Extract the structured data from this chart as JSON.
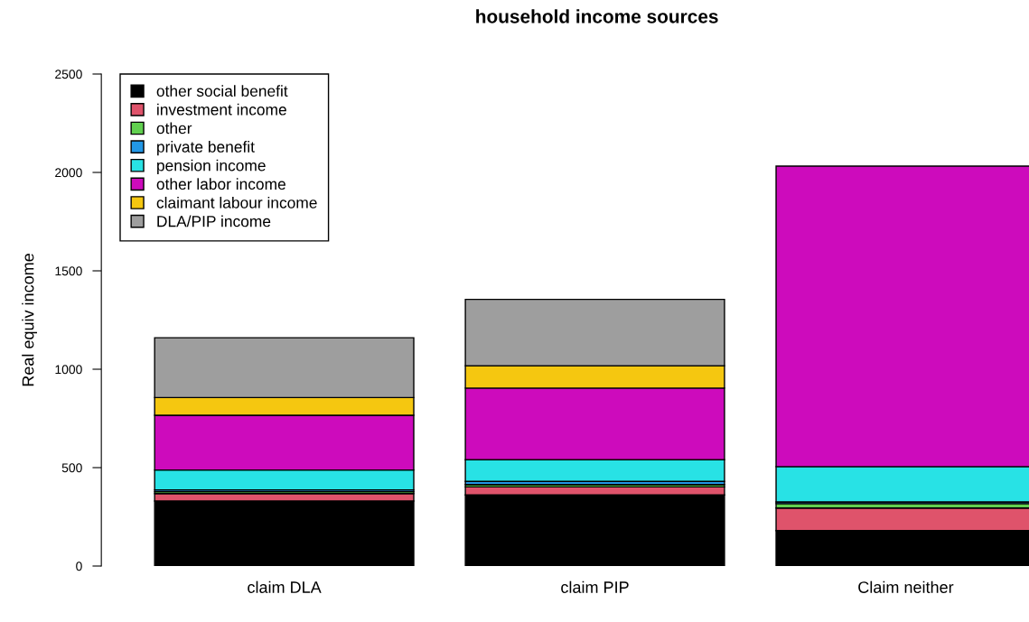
{
  "chart_data": {
    "type": "bar",
    "title": "household income sources",
    "ylabel": "Real equiv income",
    "categories": [
      "claim DLA",
      "claim PIP",
      "Claim neither"
    ],
    "stacked": true,
    "series": [
      {
        "name": "other social benefit",
        "color": "#000000",
        "values": [
          330,
          361,
          180
        ]
      },
      {
        "name": "investment income",
        "color": "#df536b",
        "values": [
          38,
          41,
          115
        ]
      },
      {
        "name": "other",
        "color": "#61d04f",
        "values": [
          10,
          12,
          22
        ]
      },
      {
        "name": "private benefit",
        "color": "#2297e6",
        "values": [
          9,
          16,
          9
        ]
      },
      {
        "name": "pension income",
        "color": "#28e2e5",
        "values": [
          101,
          110,
          179
        ]
      },
      {
        "name": "other labor income",
        "color": "#cd0bbc",
        "values": [
          278,
          364,
          1527
        ]
      },
      {
        "name": "claimant labour income",
        "color": "#f5c710",
        "values": [
          90,
          114,
          0
        ]
      },
      {
        "name": "DLA/PIP income",
        "color": "#9e9e9e",
        "values": [
          304,
          337,
          0
        ]
      }
    ],
    "ylim": [
      0,
      2500
    ],
    "yticks": [
      0,
      500,
      1000,
      1500,
      2000,
      2500
    ],
    "legend": "top left",
    "grid": false
  }
}
